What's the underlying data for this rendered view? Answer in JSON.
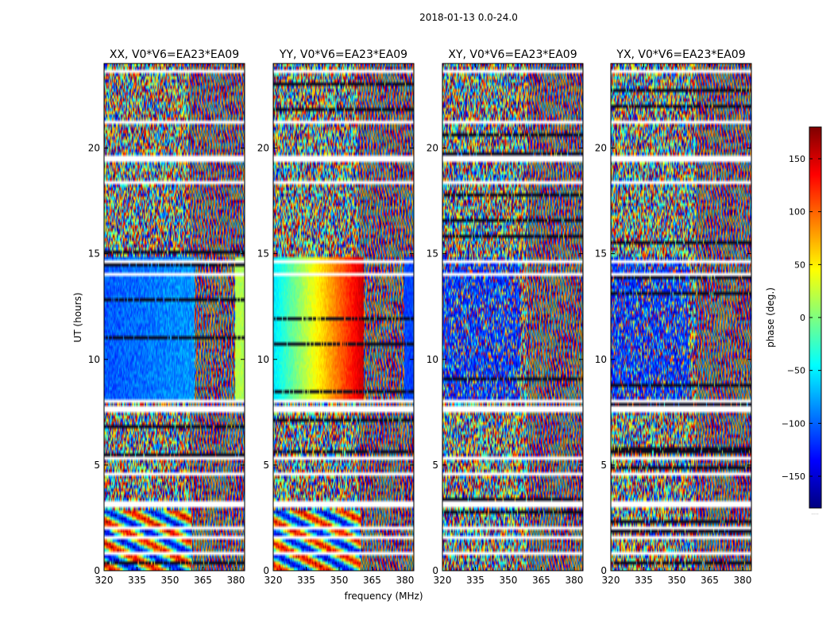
{
  "figure": {
    "suptitle": "2018-01-13 0.0-24.0",
    "xlabel": "frequency (MHz)",
    "ylabel": "UT (hours)"
  },
  "chart_data": {
    "type": "heatmap",
    "panels": [
      {
        "title": "XX, V0*V6=EA23*EA09",
        "pattern": "xx"
      },
      {
        "title": "YY, V0*V6=EA23*EA09",
        "pattern": "yy"
      },
      {
        "title": "XY, V0*V6=EA23*EA09",
        "pattern": "cross"
      },
      {
        "title": "YX, V0*V6=EA23*EA09",
        "pattern": "cross"
      }
    ],
    "xlim": [
      320,
      384
    ],
    "xticks": [
      320,
      335,
      350,
      365,
      380
    ],
    "xtick_labels": [
      "320",
      "335",
      "350",
      "365",
      "380"
    ],
    "ylim": [
      0,
      24
    ],
    "yticks": [
      0,
      5,
      10,
      15,
      20
    ],
    "ytick_labels": [
      "0",
      "5",
      "10",
      "15",
      "20"
    ],
    "colorbar": {
      "label": "phase (deg.)",
      "range": [
        -180,
        180
      ],
      "ticks": [
        150,
        100,
        50,
        0,
        -50,
        -100,
        -150
      ],
      "tick_labels": [
        "150",
        "100",
        "50",
        "0",
        "−50",
        "−100",
        "−150"
      ],
      "colormap": "jet",
      "footnote": "....."
    },
    "flagged_time_ranges_hours": [
      [
        7.55,
        7.85
      ],
      [
        7.95,
        8.05
      ],
      [
        2.95,
        3.35
      ],
      [
        19.5,
        19.65
      ],
      [
        21.15,
        21.25
      ],
      [
        22.3,
        22.4
      ],
      [
        14.8,
        14.85
      ],
      [
        0.8,
        0.85
      ]
    ],
    "gap_time_hours": [
      1.6,
      2.0,
      4.6,
      5.3,
      14.0,
      14.6,
      17.4,
      18.4,
      19.4,
      22.8,
      23.6
    ],
    "colors": {
      "jet_stops": [
        "#00007f",
        "#0000ff",
        "#007fff",
        "#00ffff",
        "#7fff7f",
        "#ffff00",
        "#ff7f00",
        "#ff0000",
        "#7f0000"
      ]
    }
  }
}
